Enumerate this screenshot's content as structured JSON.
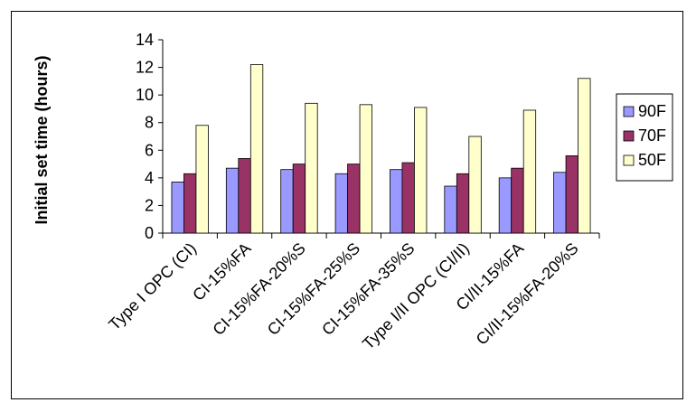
{
  "chart_data": {
    "type": "bar",
    "title": "",
    "xlabel": "",
    "ylabel": "Initial set time (hours)",
    "ylim": [
      0,
      14
    ],
    "yticks": [
      0,
      2,
      4,
      6,
      8,
      10,
      12,
      14
    ],
    "grid": false,
    "legend_position": "right",
    "categories": [
      "Type I OPC (CI)",
      "CI-15%FA",
      "CI-15%FA-20%S",
      "CI-15%FA-25%S",
      "CI-15%FA-35%S",
      "Type I/II OPC (CI/II)",
      "CI/II-15%FA",
      "CI/II-15%FA-20%S"
    ],
    "series": [
      {
        "name": "90F",
        "color": "#9999ff",
        "values": [
          3.7,
          4.7,
          4.6,
          4.3,
          4.6,
          3.4,
          4.0,
          4.4
        ]
      },
      {
        "name": "70F",
        "color": "#993366",
        "values": [
          4.3,
          5.4,
          5.0,
          5.0,
          5.1,
          4.3,
          4.7,
          5.6
        ]
      },
      {
        "name": "50F",
        "color": "#ffffcc",
        "values": [
          7.8,
          12.2,
          9.4,
          9.3,
          9.1,
          7.0,
          8.9,
          11.2
        ]
      }
    ]
  }
}
